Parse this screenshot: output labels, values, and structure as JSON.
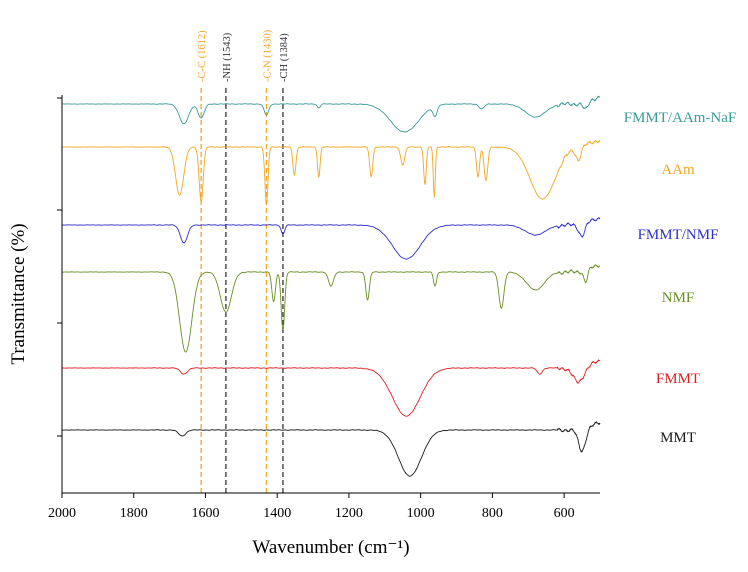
{
  "chart_data": {
    "type": "line",
    "xlabel": "Wavenumber (cm⁻¹)",
    "ylabel": "Transmittance (%)",
    "xlim": [
      2000,
      500
    ],
    "x_reversed": true,
    "x_ticks": [
      2000,
      1800,
      1600,
      1400,
      1200,
      1000,
      800,
      600
    ],
    "x_tick_labels": [
      "2000",
      "1800",
      "1600",
      "1400",
      "1200",
      "1000",
      "800",
      "600"
    ],
    "y_tick_labels_shown": false,
    "grid": false,
    "legend": "inline labels at right of each trace",
    "stacked_offset": true,
    "reference_lines": [
      {
        "label": "-C-C (1612)",
        "x": 1612,
        "color": "#F5A623"
      },
      {
        "label": "-NH (1543)",
        "x": 1543,
        "color": "#333333"
      },
      {
        "label": "-C-N (1430)",
        "x": 1430,
        "color": "#F5A623"
      },
      {
        "label": "-CH (1384)",
        "x": 1384,
        "color": "#333333"
      }
    ],
    "series": [
      {
        "name": "FMMT/AAm-NaF",
        "color": "#3A9C9C",
        "baseline": 104,
        "bands": [
          {
            "x": 1660,
            "depth": 20,
            "w": 18
          },
          {
            "x": 1612,
            "depth": 14,
            "w": 12
          },
          {
            "x": 1430,
            "depth": 11,
            "w": 9
          },
          {
            "x": 1284,
            "depth": 4,
            "w": 6
          },
          {
            "x": 1045,
            "depth": 28,
            "w": 55
          },
          {
            "x": 960,
            "depth": 10,
            "w": 8
          },
          {
            "x": 830,
            "depth": 5,
            "w": 10
          },
          {
            "x": 680,
            "depth": 13,
            "w": 40
          },
          {
            "x": 540,
            "depth": 8,
            "w": 10
          }
        ]
      },
      {
        "name": "AAm",
        "color": "#F5A623",
        "baseline": 147,
        "bands": [
          {
            "x": 1672,
            "depth": 48,
            "w": 16
          },
          {
            "x": 1612,
            "depth": 55,
            "w": 8
          },
          {
            "x": 1430,
            "depth": 58,
            "w": 6
          },
          {
            "x": 1352,
            "depth": 28,
            "w": 6
          },
          {
            "x": 1284,
            "depth": 30,
            "w": 5
          },
          {
            "x": 1138,
            "depth": 30,
            "w": 6
          },
          {
            "x": 1050,
            "depth": 18,
            "w": 8
          },
          {
            "x": 988,
            "depth": 38,
            "w": 5
          },
          {
            "x": 962,
            "depth": 50,
            "w": 4
          },
          {
            "x": 840,
            "depth": 30,
            "w": 6
          },
          {
            "x": 818,
            "depth": 34,
            "w": 7
          },
          {
            "x": 660,
            "depth": 52,
            "w": 50
          },
          {
            "x": 560,
            "depth": 12,
            "w": 10
          }
        ]
      },
      {
        "name": "FMMT/NMF",
        "color": "#2E2ECC",
        "baseline": 225,
        "bands": [
          {
            "x": 1660,
            "depth": 18,
            "w": 14
          },
          {
            "x": 1384,
            "depth": 9,
            "w": 7
          },
          {
            "x": 1040,
            "depth": 34,
            "w": 55
          },
          {
            "x": 680,
            "depth": 10,
            "w": 40
          },
          {
            "x": 550,
            "depth": 12,
            "w": 12
          }
        ]
      },
      {
        "name": "NMF",
        "color": "#6B8E23",
        "baseline": 272,
        "bands": [
          {
            "x": 1655,
            "depth": 80,
            "w": 24
          },
          {
            "x": 1543,
            "depth": 40,
            "w": 22
          },
          {
            "x": 1410,
            "depth": 30,
            "w": 7
          },
          {
            "x": 1384,
            "depth": 58,
            "w": 7
          },
          {
            "x": 1250,
            "depth": 14,
            "w": 10
          },
          {
            "x": 1148,
            "depth": 28,
            "w": 7
          },
          {
            "x": 960,
            "depth": 14,
            "w": 6
          },
          {
            "x": 775,
            "depth": 36,
            "w": 10
          },
          {
            "x": 680,
            "depth": 18,
            "w": 35
          },
          {
            "x": 540,
            "depth": 12,
            "w": 8
          }
        ]
      },
      {
        "name": "FMMT",
        "color": "#E02020",
        "baseline": 368,
        "bands": [
          {
            "x": 1660,
            "depth": 6,
            "w": 14
          },
          {
            "x": 1040,
            "depth": 48,
            "w": 55
          },
          {
            "x": 668,
            "depth": 6,
            "w": 10
          },
          {
            "x": 560,
            "depth": 14,
            "w": 22
          }
        ]
      },
      {
        "name": "MMT",
        "color": "#1A1A1A",
        "baseline": 430,
        "bands": [
          {
            "x": 1665,
            "depth": 6,
            "w": 14
          },
          {
            "x": 1030,
            "depth": 46,
            "w": 45
          },
          {
            "x": 550,
            "depth": 22,
            "w": 14
          }
        ]
      }
    ]
  }
}
